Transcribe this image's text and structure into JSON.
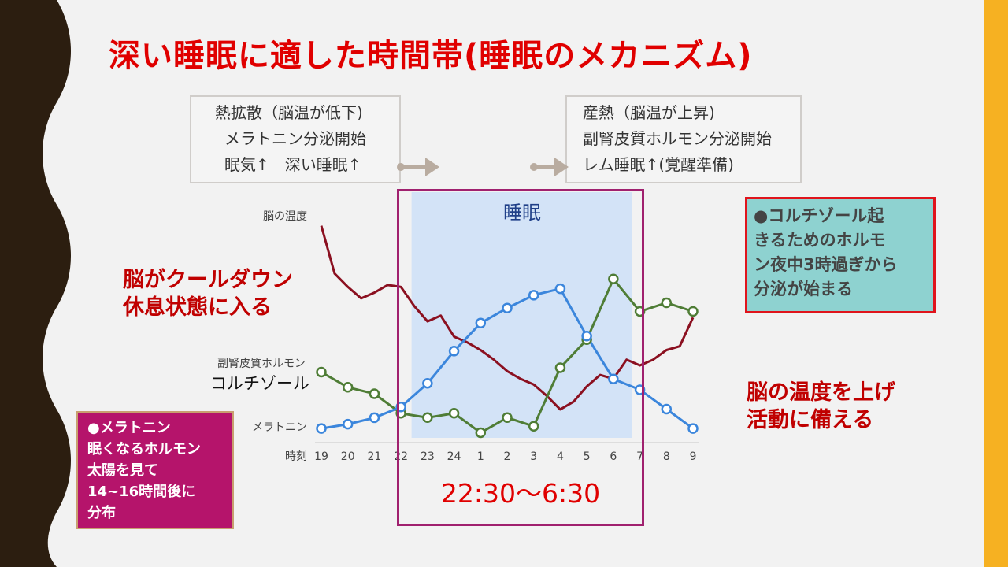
{
  "title": "深い睡眠に適した時間帯(睡眠のメカニズム)",
  "left_box": {
    "lines": [
      "熱拡散（脳温が低下)",
      "メラトニン分泌開始",
      "眠気↑　深い睡眠↑"
    ]
  },
  "right_box": {
    "lines": [
      "産熱（脳温が上昇)",
      "副腎皮質ホルモン分泌開始",
      "レム睡眠↑(覚醒準備)"
    ]
  },
  "note_cooldown": [
    "脳がクールダウン",
    "休息状態に入る"
  ],
  "note_warmup": [
    "脳の温度を上げ",
    "活動に備える"
  ],
  "cortisol_box": {
    "lines": [
      "●コルチゾール起",
      "きるためのホルモ",
      "ン夜中3時過ぎから",
      "分泌が始まる"
    ]
  },
  "melatonin_box": {
    "lines": [
      "●メラトニン",
      "眠くなるホルモン",
      "太陽を見て",
      "14~16時間後に",
      "分布"
    ]
  },
  "time_range": "22:30〜6:30",
  "chart_data": {
    "type": "line",
    "sleep_band_label": "睡眠",
    "x_axis_label": "時刻",
    "categories": [
      "19",
      "20",
      "21",
      "22",
      "23",
      "24",
      "1",
      "2",
      "3",
      "4",
      "5",
      "6",
      "7",
      "8",
      "9"
    ],
    "row_labels": {
      "brain_temp": "脳の温度",
      "cortisol": [
        "副腎皮質ホルモン",
        "コルチゾール"
      ],
      "melatonin": "メラトニン"
    },
    "colors": {
      "brain_temp": "#8b1020",
      "cortisol": "#4f7d36",
      "melatonin": "#3b86dc",
      "sleep_band": "#d3e3f7"
    },
    "series": [
      {
        "key": "brain_temp",
        "x": [
          19,
          19.5,
          20,
          20.5,
          21,
          21.5,
          22,
          22.5,
          23,
          23.5,
          24,
          24.5,
          25,
          25.5,
          26,
          26.5,
          27,
          27.5,
          28,
          28.5,
          29,
          29.5,
          30,
          30.5,
          31,
          31.5,
          32,
          32.5,
          33
        ],
        "values": [
          0.94,
          0.69,
          0.62,
          0.56,
          0.59,
          0.63,
          0.62,
          0.52,
          0.44,
          0.47,
          0.36,
          0.33,
          0.29,
          0.24,
          0.18,
          0.14,
          0.11,
          0.05,
          -0.02,
          0.02,
          0.1,
          0.16,
          0.14,
          0.24,
          0.21,
          0.24,
          0.29,
          0.31,
          0.46
        ]
      },
      {
        "key": "cortisol",
        "x": [
          19,
          20,
          21,
          22,
          23,
          24,
          25,
          26,
          27,
          28,
          29,
          30,
          31,
          32,
          33
        ],
        "values": [
          0.3,
          0.23,
          0.2,
          0.11,
          0.09,
          0.11,
          0.02,
          0.09,
          0.05,
          0.32,
          0.45,
          0.73,
          0.58,
          0.62,
          0.58
        ]
      },
      {
        "key": "melatonin",
        "x": [
          19,
          20,
          21,
          22,
          23,
          24,
          25,
          26,
          27,
          28,
          29,
          30,
          31,
          32,
          33
        ],
        "values": [
          0.04,
          0.06,
          0.09,
          0.14,
          0.25,
          0.4,
          0.53,
          0.6,
          0.66,
          0.69,
          0.47,
          0.27,
          0.22,
          0.13,
          0.04
        ]
      }
    ],
    "x_range": [
      19,
      33
    ],
    "y_range": [
      0,
      1
    ],
    "sleep_band_x": [
      22.4,
      30.7
    ]
  }
}
